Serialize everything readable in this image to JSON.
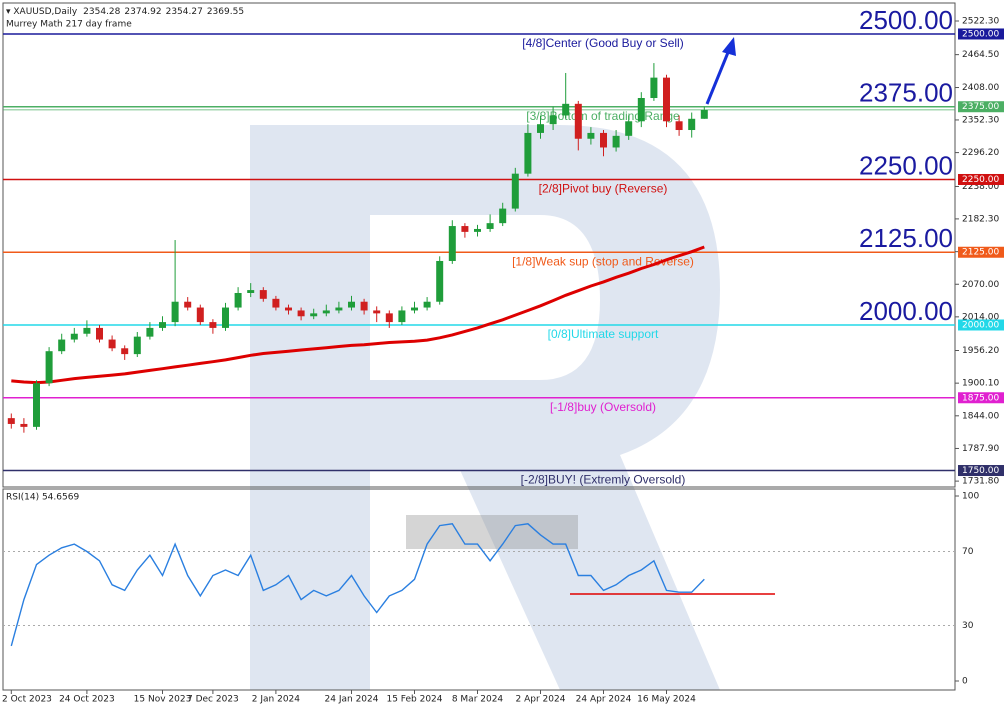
{
  "chart_data": {
    "type": "candlestick",
    "title": "XAUUSD,Daily",
    "subtitle": "Murrey Math 217 day frame",
    "categories": [
      "2 Oct 2023",
      null,
      null,
      null,
      null,
      null,
      "24 Oct 2023",
      null,
      null,
      null,
      null,
      null,
      "15 Nov 2023",
      null,
      null,
      null,
      "7 Dec 2023",
      null,
      null,
      null,
      null,
      "2 Jan 2024",
      null,
      null,
      null,
      null,
      null,
      "24 Jan 2024",
      null,
      null,
      null,
      null,
      "15 Feb 2024",
      null,
      null,
      null,
      null,
      "8 Mar 2024",
      null,
      null,
      null,
      null,
      "2 Apr 2024",
      null,
      null,
      null,
      null,
      "24 Apr 2024",
      null,
      null,
      null,
      null,
      "16 May 2024",
      null,
      null,
      null
    ],
    "open": [
      1840,
      1830,
      1825,
      1900,
      1955,
      1975,
      1985,
      1995,
      1975,
      1960,
      1950,
      1980,
      1995,
      2005,
      2040,
      2030,
      2005,
      1995,
      2030,
      2055,
      2060,
      2045,
      2030,
      2025,
      2015,
      2020,
      2025,
      2030,
      2040,
      2025,
      2020,
      2005,
      2025,
      2030,
      2040,
      2110,
      2170,
      2160,
      2165,
      2175,
      2200,
      2260,
      2330,
      2345,
      2360,
      2380,
      2320,
      2330,
      2305,
      2325,
      2350,
      2390,
      2425,
      2350,
      2335,
      2354.28
    ],
    "high": [
      1848,
      1840,
      1905,
      1962,
      1985,
      1995,
      2008,
      2000,
      1982,
      1965,
      1988,
      2005,
      2015,
      2146,
      2048,
      2035,
      2010,
      2038,
      2065,
      2072,
      2065,
      2050,
      2035,
      2030,
      2028,
      2035,
      2040,
      2050,
      2045,
      2032,
      2025,
      2032,
      2040,
      2048,
      2118,
      2180,
      2175,
      2172,
      2190,
      2210,
      2270,
      2345,
      2360,
      2375,
      2433,
      2385,
      2340,
      2335,
      2335,
      2360,
      2400,
      2450,
      2430,
      2360,
      2365,
      2374.92
    ],
    "low": [
      1822,
      1815,
      1820,
      1895,
      1950,
      1970,
      1980,
      1970,
      1955,
      1940,
      1945,
      1975,
      1990,
      1998,
      2025,
      2000,
      1985,
      1990,
      2025,
      2048,
      2040,
      2025,
      2018,
      2008,
      2010,
      2015,
      2020,
      2025,
      2018,
      2005,
      1995,
      2000,
      2020,
      2025,
      2035,
      2105,
      2150,
      2152,
      2160,
      2170,
      2195,
      2255,
      2320,
      2335,
      2355,
      2300,
      2310,
      2290,
      2298,
      2318,
      2340,
      2385,
      2340,
      2325,
      2322,
      2354.27
    ],
    "close": [
      1830,
      1825,
      1900,
      1955,
      1975,
      1985,
      1995,
      1975,
      1960,
      1950,
      1980,
      1995,
      2005,
      2040,
      2030,
      2005,
      1995,
      2030,
      2055,
      2060,
      2045,
      2030,
      2025,
      2015,
      2020,
      2025,
      2030,
      2040,
      2025,
      2020,
      2005,
      2025,
      2030,
      2040,
      2110,
      2170,
      2160,
      2165,
      2175,
      2200,
      2260,
      2330,
      2345,
      2360,
      2380,
      2320,
      2330,
      2305,
      2325,
      2350,
      2390,
      2425,
      2350,
      2335,
      2354.28,
      2369.55
    ],
    "up_color": "#1f9d3a",
    "down_color": "#d01f1f",
    "ma": {
      "color": "#dd0000",
      "values": [
        1904,
        1902,
        1901,
        1902,
        1905,
        1908,
        1910,
        1912,
        1914,
        1916,
        1919,
        1922,
        1925,
        1928,
        1931,
        1934,
        1937,
        1940,
        1944,
        1948,
        1951,
        1953,
        1955,
        1957,
        1959,
        1961,
        1963,
        1965,
        1966,
        1968,
        1970,
        1971,
        1972,
        1974,
        1978,
        1983,
        1989,
        1995,
        2002,
        2009,
        2017,
        2025,
        2033,
        2042,
        2051,
        2059,
        2067,
        2074,
        2082,
        2089,
        2097,
        2104,
        2112,
        2119,
        2126,
        2134
      ]
    },
    "ylim": [
      1723.4,
      2551.5
    ],
    "yticks": [
      {
        "value": 2522.3,
        "label": "2522.30"
      },
      {
        "value": 2464.5,
        "label": "2464.50"
      },
      {
        "value": 2408,
        "label": "2408.00"
      },
      {
        "value": 2352.3,
        "label": "2352.30"
      },
      {
        "value": 2296.2,
        "label": "2296.20"
      },
      {
        "value": 2238,
        "label": "2238.00"
      },
      {
        "value": 2182.3,
        "label": "2182.30"
      },
      {
        "value": 2126,
        "label": "2126.00"
      },
      {
        "value": 2070,
        "label": "2070.00"
      },
      {
        "value": 2014,
        "label": "2014.00"
      },
      {
        "value": 1956.2,
        "label": "1956.20"
      },
      {
        "value": 1900.1,
        "label": "1900.10"
      },
      {
        "value": 1844,
        "label": "1844.00"
      },
      {
        "value": 1787.9,
        "label": "1787.90"
      },
      {
        "value": 1731.8,
        "label": "1731.80"
      }
    ],
    "levels": [
      {
        "value": 2500,
        "label": "2500.00",
        "text": "[4/8]Center (Good Buy or Sell)",
        "color": "#1a1a9c",
        "large_label": true
      },
      {
        "value": 2375,
        "label": "2375.00",
        "text": "[3/8]Bottom of trading Range",
        "color": "#4caf64",
        "large_label": true
      },
      {
        "value": 2250,
        "label": "2250.00",
        "text": "[2/8]Pivot buy (Reverse)",
        "color": "#d01010",
        "large_label": true
      },
      {
        "value": 2125,
        "label": "2125.00",
        "text": "[1/8]Weak sup (stop and Reverse)",
        "color": "#f05a1a",
        "large_label": true
      },
      {
        "value": 2000,
        "label": "2000.00",
        "text": "[0/8]Ultimate support",
        "color": "#22d8e8",
        "large_label": true
      },
      {
        "value": 1875,
        "label": "1875.00",
        "text": "[-1/8]buy (Oversold)",
        "color": "#e020d0",
        "large_label": false
      },
      {
        "value": 1750,
        "label": "1750.00",
        "text": "[-2/8]BUY! (Extremly Oversold)",
        "color": "#30306a",
        "large_label": false
      }
    ],
    "rsi": {
      "title": "RSI(14) 54.6569",
      "color": "#2a7fe0",
      "values": [
        19,
        44,
        63,
        68,
        72,
        74,
        70,
        65,
        52,
        49,
        60,
        68,
        57,
        74,
        57,
        46,
        57,
        60,
        57,
        68,
        49,
        52,
        57,
        44,
        49,
        46,
        49,
        57,
        46,
        37,
        46,
        49,
        55,
        74,
        84,
        85,
        74,
        74,
        65,
        74,
        84,
        85,
        79,
        74,
        74,
        57,
        57,
        49,
        52,
        57,
        60,
        65,
        49,
        48,
        48,
        55
      ],
      "ylim": [
        0,
        100
      ],
      "yticks": [
        100,
        70,
        30,
        0
      ],
      "support": 47,
      "support_color": "#e00000"
    }
  }
}
